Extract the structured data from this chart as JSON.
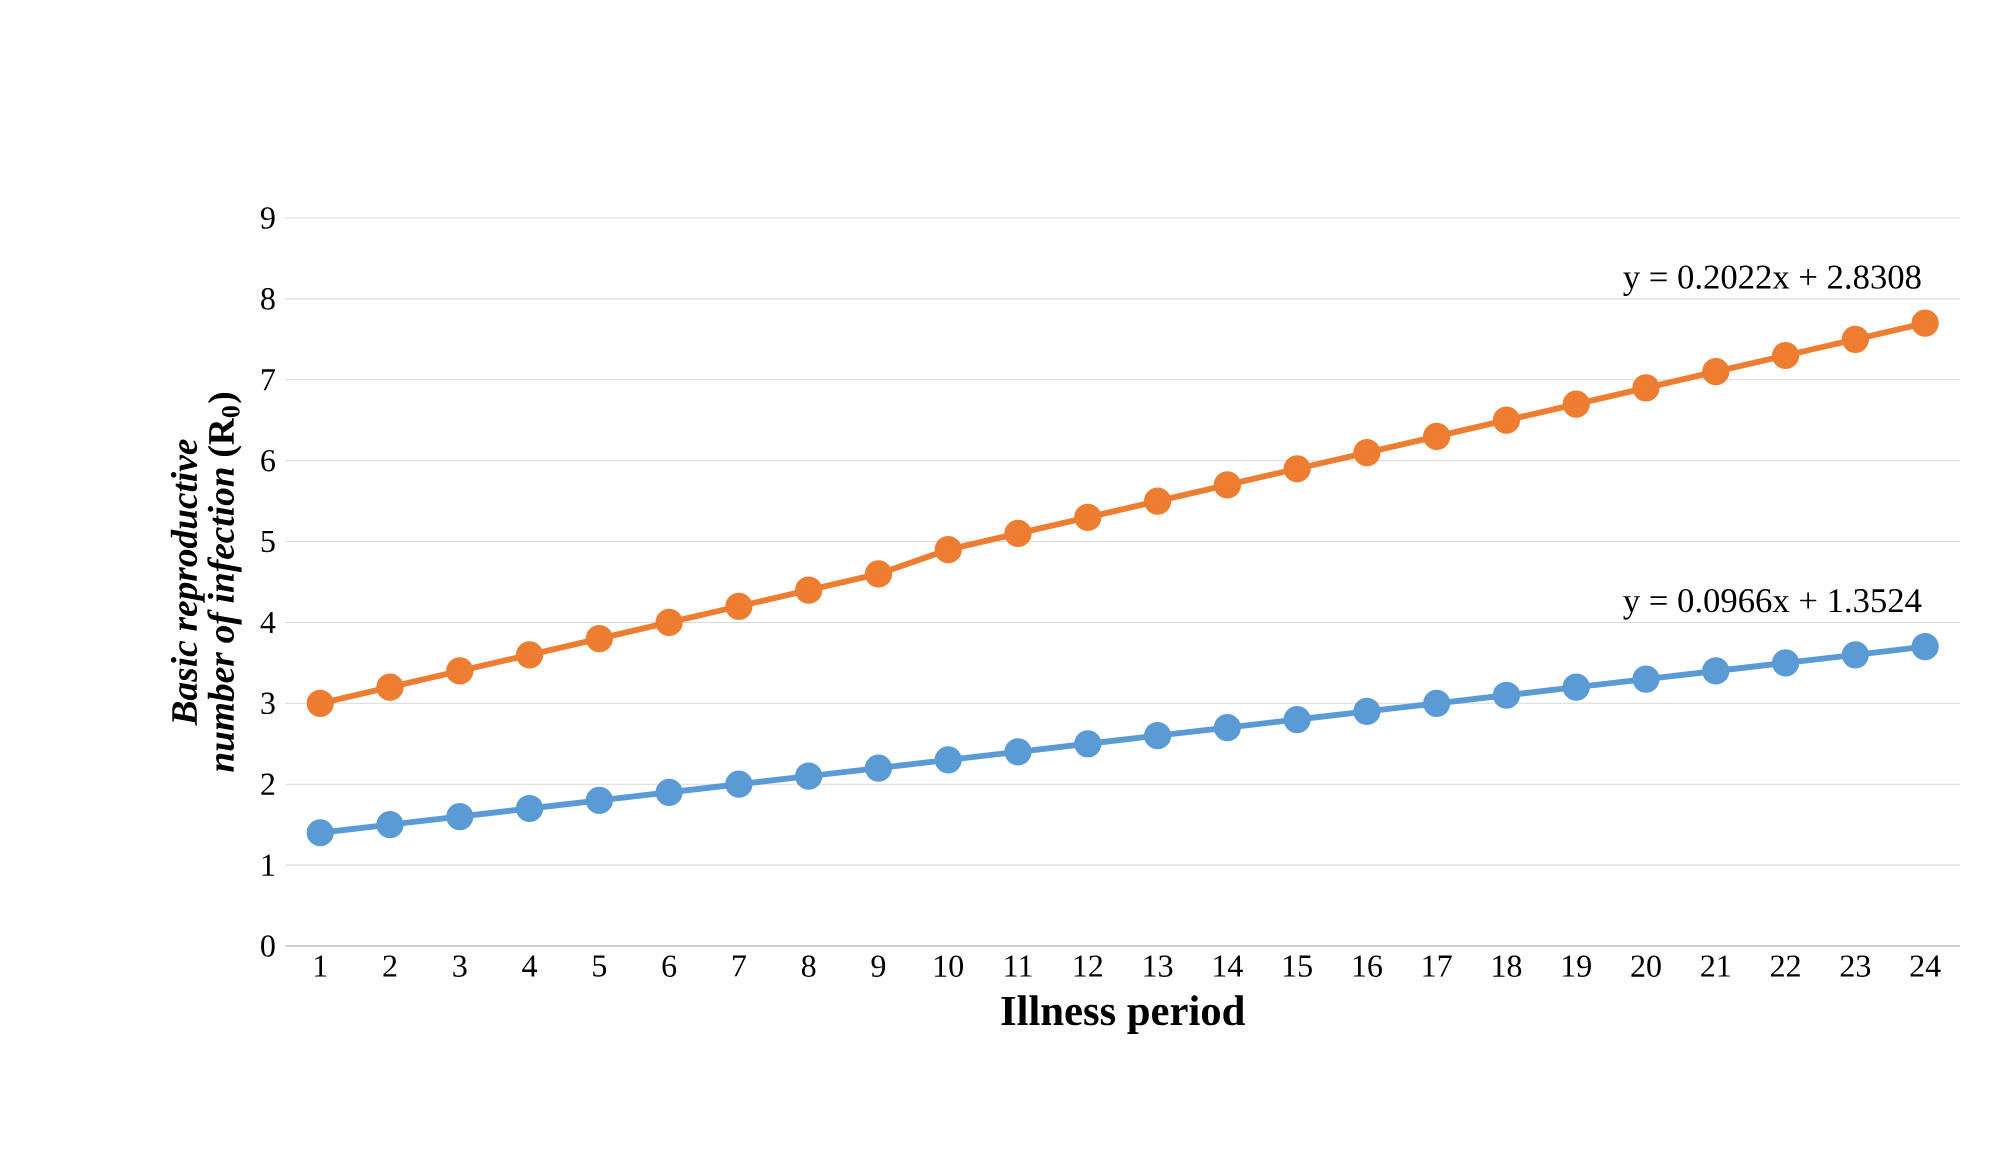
{
  "chart_data": {
    "type": "line",
    "xlabel": "Illness period",
    "ylabel": "*Basic reproductive number of infection* (R$_{0}$)",
    "x": [
      1,
      2,
      3,
      4,
      5,
      6,
      7,
      8,
      9,
      10,
      11,
      12,
      13,
      14,
      15,
      16,
      17,
      18,
      19,
      20,
      21,
      22,
      23,
      24
    ],
    "series": [
      {
        "color": "#5b9bd5",
        "values": [
          1.4,
          1.5,
          1.6,
          1.7,
          1.8,
          1.9,
          2.0,
          2.1,
          2.2,
          2.3,
          2.4,
          2.5,
          2.6,
          2.7,
          2.8,
          2.9,
          3.0,
          3.1,
          3.2,
          3.3,
          3.4,
          3.5,
          3.6,
          3.7
        ]
      },
      {
        "color": "#ed7d31",
        "values": [
          3.0,
          3.2,
          3.4,
          3.6,
          3.8,
          4.0,
          4.2,
          4.4,
          4.6,
          4.9,
          5.1,
          5.3,
          5.5,
          5.7,
          5.9,
          6.1,
          6.3,
          6.5,
          6.7,
          6.9,
          7.1,
          7.3,
          7.5,
          7.7
        ]
      }
    ],
    "xlim": [
      0.5,
      24.5
    ],
    "xticks": [
      1,
      2,
      3,
      4,
      5,
      6,
      7,
      8,
      9,
      10,
      11,
      12,
      13,
      14,
      15,
      16,
      17,
      18,
      19,
      20,
      21,
      22,
      23,
      24
    ],
    "ylim": [
      0,
      9
    ],
    "yticks": [
      0,
      1,
      2,
      3,
      4,
      5,
      6,
      7,
      8,
      9
    ],
    "grid": "y",
    "marker": "circle",
    "line_style": "solid",
    "annotations": [
      "y = 0.0966x + 1.3524",
      "y = 0.2022x + 2.8308"
    ]
  }
}
